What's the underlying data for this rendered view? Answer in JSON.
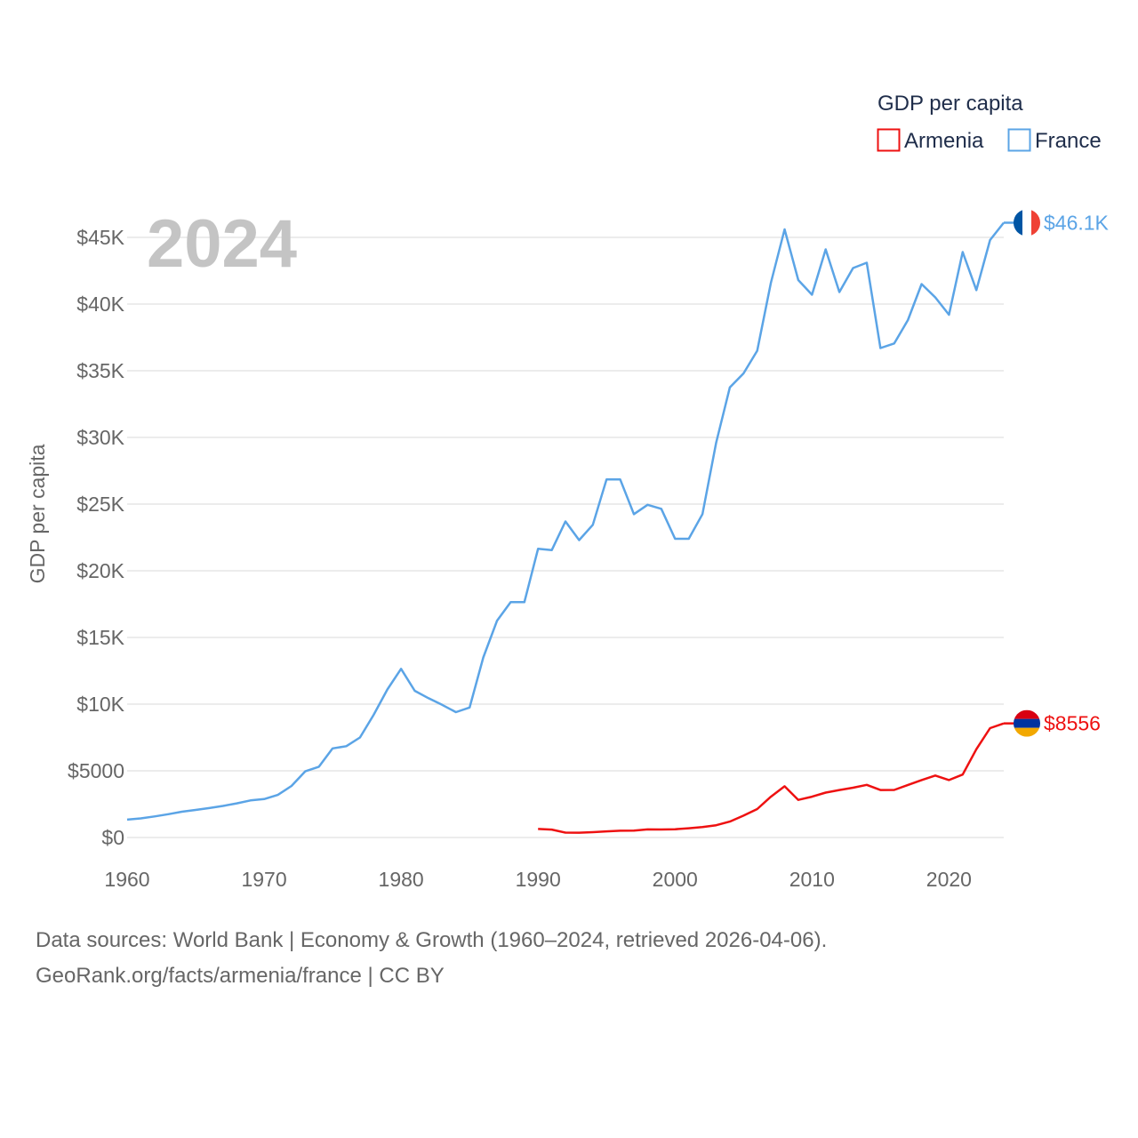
{
  "chart_data": {
    "type": "line",
    "title": "",
    "year_label": "2024",
    "ylabel": "GDP per capita",
    "xlabel": "",
    "xlim": [
      1960,
      2024
    ],
    "ylim": [
      0,
      45000
    ],
    "x_ticks": [
      1960,
      1970,
      1980,
      1990,
      2000,
      2010,
      2020
    ],
    "x_tick_labels": [
      "1960",
      "1970",
      "1980",
      "1990",
      "2000",
      "2010",
      "2020"
    ],
    "y_ticks": [
      0,
      5000,
      10000,
      15000,
      20000,
      25000,
      30000,
      35000,
      40000,
      45000
    ],
    "y_tick_labels": [
      "$0",
      "$5000",
      "$10K",
      "$15K",
      "$20K",
      "$25K",
      "$30K",
      "$35K",
      "$40K",
      "$45K"
    ],
    "grid": true,
    "legend": {
      "title": "GDP per capita",
      "placement": "top-right",
      "entries": [
        {
          "name": "Armenia",
          "color": "#ee1111"
        },
        {
          "name": "France",
          "color": "#5ba4e6"
        }
      ]
    },
    "series": [
      {
        "name": "France",
        "color": "#5ba4e6",
        "end_label": "$46.1K",
        "flag": "france-flag",
        "points": [
          [
            1960,
            1340
          ],
          [
            1961,
            1430
          ],
          [
            1962,
            1580
          ],
          [
            1963,
            1750
          ],
          [
            1964,
            1930
          ],
          [
            1965,
            2070
          ],
          [
            1966,
            2210
          ],
          [
            1967,
            2370
          ],
          [
            1968,
            2560
          ],
          [
            1969,
            2780
          ],
          [
            1970,
            2880
          ],
          [
            1971,
            3190
          ],
          [
            1972,
            3870
          ],
          [
            1973,
            4960
          ],
          [
            1974,
            5310
          ],
          [
            1975,
            6680
          ],
          [
            1976,
            6850
          ],
          [
            1977,
            7500
          ],
          [
            1978,
            9200
          ],
          [
            1979,
            11100
          ],
          [
            1980,
            12650
          ],
          [
            1981,
            11000
          ],
          [
            1982,
            10450
          ],
          [
            1983,
            9950
          ],
          [
            1984,
            9400
          ],
          [
            1985,
            9750
          ],
          [
            1986,
            13500
          ],
          [
            1987,
            16250
          ],
          [
            1988,
            17650
          ],
          [
            1989,
            17650
          ],
          [
            1990,
            21650
          ],
          [
            1991,
            21550
          ],
          [
            1992,
            23700
          ],
          [
            1993,
            22300
          ],
          [
            1994,
            23450
          ],
          [
            1995,
            26850
          ],
          [
            1996,
            26850
          ],
          [
            1997,
            24250
          ],
          [
            1998,
            24950
          ],
          [
            1999,
            24650
          ],
          [
            2000,
            22400
          ],
          [
            2001,
            22400
          ],
          [
            2002,
            24250
          ],
          [
            2003,
            29600
          ],
          [
            2004,
            33750
          ],
          [
            2005,
            34800
          ],
          [
            2006,
            36500
          ],
          [
            2007,
            41600
          ],
          [
            2008,
            45600
          ],
          [
            2009,
            41800
          ],
          [
            2010,
            40700
          ],
          [
            2011,
            44100
          ],
          [
            2012,
            40900
          ],
          [
            2013,
            42700
          ],
          [
            2014,
            43100
          ],
          [
            2015,
            36700
          ],
          [
            2016,
            37050
          ],
          [
            2017,
            38800
          ],
          [
            2018,
            41500
          ],
          [
            2019,
            40500
          ],
          [
            2020,
            39200
          ],
          [
            2021,
            43900
          ],
          [
            2022,
            41050
          ],
          [
            2023,
            44800
          ],
          [
            2024,
            46100
          ]
        ]
      },
      {
        "name": "Armenia",
        "color": "#ee1111",
        "end_label": "$8556",
        "flag": "armenia-flag",
        "points": [
          [
            1990,
            640
          ],
          [
            1991,
            590
          ],
          [
            1992,
            370
          ],
          [
            1993,
            360
          ],
          [
            1994,
            400
          ],
          [
            1995,
            460
          ],
          [
            1996,
            510
          ],
          [
            1997,
            520
          ],
          [
            1998,
            610
          ],
          [
            1999,
            600
          ],
          [
            2000,
            620
          ],
          [
            2001,
            690
          ],
          [
            2002,
            780
          ],
          [
            2003,
            920
          ],
          [
            2004,
            1190
          ],
          [
            2005,
            1640
          ],
          [
            2006,
            2130
          ],
          [
            2007,
            3060
          ],
          [
            2008,
            3840
          ],
          [
            2009,
            2820
          ],
          [
            2010,
            3060
          ],
          [
            2011,
            3370
          ],
          [
            2012,
            3560
          ],
          [
            2013,
            3730
          ],
          [
            2014,
            3950
          ],
          [
            2015,
            3560
          ],
          [
            2016,
            3570
          ],
          [
            2017,
            3940
          ],
          [
            2018,
            4310
          ],
          [
            2019,
            4650
          ],
          [
            2020,
            4310
          ],
          [
            2021,
            4720
          ],
          [
            2022,
            6620
          ],
          [
            2023,
            8200
          ],
          [
            2024,
            8556
          ]
        ]
      }
    ]
  },
  "footer": {
    "source_line": "Data sources: World Bank | Economy & Growth (1960–2024, retrieved 2026-04-06).",
    "license_line": "GeoRank.org/facts/armenia/france | CC BY"
  }
}
